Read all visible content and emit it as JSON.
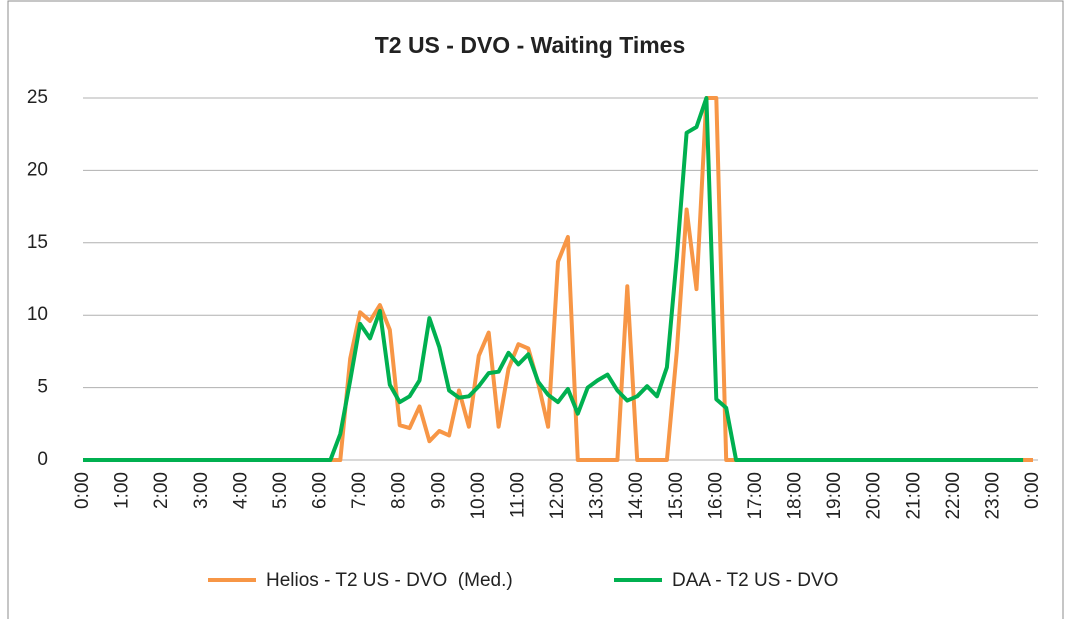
{
  "chart_data": {
    "type": "line",
    "title": "T2 US - DVO - Waiting Times",
    "categories": [
      "0:00",
      null,
      null,
      null,
      "1:00",
      null,
      null,
      null,
      "2:00",
      null,
      null,
      null,
      "3:00",
      null,
      null,
      null,
      "4:00",
      null,
      null,
      null,
      "5:00",
      null,
      null,
      null,
      "6:00",
      null,
      null,
      null,
      "7:00",
      null,
      null,
      null,
      "8:00",
      null,
      null,
      null,
      "9:00",
      null,
      null,
      null,
      "10:00",
      null,
      null,
      null,
      "11:00",
      null,
      null,
      null,
      "12:00",
      null,
      null,
      null,
      "13:00",
      null,
      null,
      null,
      "14:00",
      null,
      null,
      null,
      "15:00",
      null,
      null,
      null,
      "16:00",
      null,
      null,
      null,
      "17:00",
      null,
      null,
      null,
      "18:00",
      null,
      null,
      null,
      "19:00",
      null,
      null,
      null,
      "20:00",
      null,
      null,
      null,
      "21:00",
      null,
      null,
      null,
      "22:00",
      null,
      null,
      null,
      "23:00",
      null,
      null,
      null,
      "0:00"
    ],
    "series": [
      {
        "name": "Helios - T2 US - DVO  (Med.)",
        "color": "#f79646",
        "values": [
          0,
          0,
          0,
          0,
          0,
          0,
          0,
          0,
          0,
          0,
          0,
          0,
          0,
          0,
          0,
          0,
          0,
          0,
          0,
          0,
          0,
          0,
          0,
          0,
          0,
          0,
          0,
          7,
          10.2,
          9.6,
          10.7,
          9,
          2.4,
          2.2,
          3.7,
          1.3,
          2,
          1.7,
          4.8,
          2.3,
          7.2,
          8.8,
          2.3,
          6.3,
          8,
          7.7,
          5.3,
          2.3,
          13.7,
          15.4,
          0,
          0,
          0,
          0,
          0,
          12,
          0,
          0,
          0,
          0,
          7.5,
          17.3,
          11.8,
          25,
          25,
          0,
          0,
          0,
          0,
          0,
          0,
          0,
          0,
          0,
          0,
          0,
          0,
          0,
          0,
          0,
          0,
          0,
          0,
          0,
          0,
          0,
          0,
          0,
          0,
          0,
          0,
          0,
          0,
          0,
          0,
          0,
          0
        ]
      },
      {
        "name": "DAA - T2 US - DVO",
        "color": "#00b050",
        "values": [
          0,
          0,
          0,
          0,
          0,
          0,
          0,
          0,
          0,
          0,
          0,
          0,
          0,
          0,
          0,
          0,
          0,
          0,
          0,
          0,
          0,
          0,
          0,
          0,
          0,
          0,
          1.8,
          5.5,
          9.4,
          8.4,
          10.3,
          5.2,
          4,
          4.4,
          5.5,
          9.8,
          7.8,
          4.8,
          4.3,
          4.4,
          5.1,
          6,
          6.1,
          7.4,
          6.6,
          7.3,
          5.4,
          4.5,
          4,
          4.9,
          3.2,
          5,
          5.5,
          5.9,
          4.8,
          4.1,
          4.4,
          5.1,
          4.4,
          6.4,
          14,
          22.6,
          23,
          25,
          4.2,
          3.6,
          0,
          0,
          0,
          0,
          0,
          0,
          0,
          0,
          0,
          0,
          0,
          0,
          0,
          0,
          0,
          0,
          0,
          0,
          0,
          0,
          0,
          0,
          0,
          0,
          0,
          0,
          0,
          0,
          0,
          0,
          null
        ]
      }
    ],
    "ylim": [
      0,
      25
    ],
    "yticks": [
      0,
      5,
      10,
      15,
      20,
      25
    ],
    "grid": true,
    "legend": "bottom"
  }
}
